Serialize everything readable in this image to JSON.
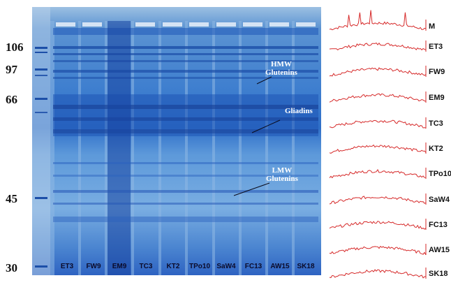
{
  "markers": [
    "106",
    "97",
    "66",
    "45",
    "30"
  ],
  "lanes": [
    "ET3",
    "FW9",
    "EM9",
    "TC3",
    "KT2",
    "TPo10",
    "SaW4",
    "FC13",
    "AW15",
    "SK18"
  ],
  "annotations": {
    "hmw": [
      "HMW",
      "Glutenins"
    ],
    "gliadins": "Gliadins",
    "lmw": [
      "LMW",
      "Glutenins"
    ]
  },
  "trace_labels": [
    "M",
    "ET3",
    "FW9",
    "EM9",
    "TC3",
    "KT2",
    "TPo10",
    "SaW4",
    "FC13",
    "AW15",
    "SK18"
  ],
  "colors": {
    "gel_blue": "#2f6fc8",
    "trace_red": "#d62a2a",
    "annotation_white": "#ffffff"
  }
}
